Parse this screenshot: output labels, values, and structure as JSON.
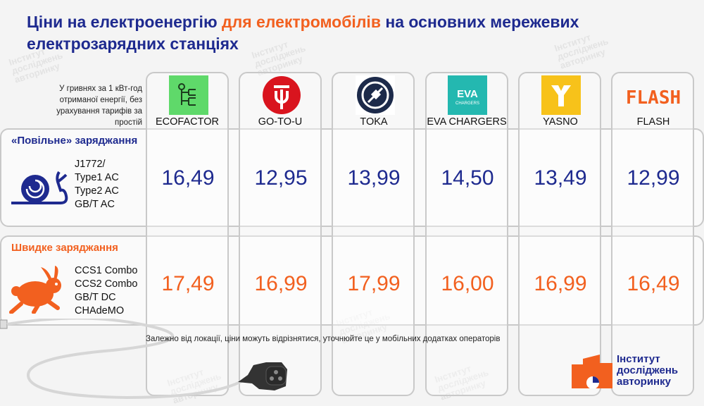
{
  "title": {
    "part1": "Ціни на електроенергію ",
    "accent": "для електромобілів",
    "part2": " на основних мережевих електрозарядних станціях"
  },
  "note": "У гривнях за 1 кВт-год отриманої енергії, без урахування тарифів за простій",
  "operators": [
    {
      "label": "ECOFACTOR",
      "logo_icon": "ecofactor-logo",
      "color": "#5fd96a"
    },
    {
      "label": "GO-TO-U",
      "logo_icon": "gotou-logo",
      "color": "#d9141e"
    },
    {
      "label": "TOKA",
      "logo_icon": "toka-logo",
      "color": "#1c2a4a"
    },
    {
      "label": "EVA CHARGERS",
      "logo_icon": "eva-logo",
      "color": "#24b8b0"
    },
    {
      "label": "YASNO",
      "logo_icon": "yasno-logo",
      "color": "#f7c21a"
    },
    {
      "label": "FLASH",
      "logo_icon": "flash-logo",
      "color": "#f2601f"
    }
  ],
  "slow": {
    "title": "«Повільне» заряджання",
    "icon": "snail-icon",
    "connectors": [
      "J1772/",
      "Type1 AC",
      "Type2 AC",
      "GB/T AC"
    ],
    "prices": [
      "16,49",
      "12,95",
      "13,99",
      "14,50",
      "13,49",
      "12,99"
    ]
  },
  "fast": {
    "title": "Швидке заряджання",
    "icon": "rabbit-icon",
    "connectors": [
      "CCS1 Combo",
      "CCS2 Combo",
      "GB/T DC",
      "CHAdeMO"
    ],
    "prices": [
      "17,49",
      "16,99",
      "17,99",
      "16,00",
      "16,99",
      "16,49"
    ]
  },
  "footnote": "Залежно від локації, ціни можуть відрізнятися, уточнюйте це у мобільних додатках операторів",
  "institute": {
    "line1": "Інститут",
    "line2": "досліджень",
    "line3": "авторинку"
  },
  "colors": {
    "blue": "#1e2a8f",
    "orange": "#f2601f"
  }
}
